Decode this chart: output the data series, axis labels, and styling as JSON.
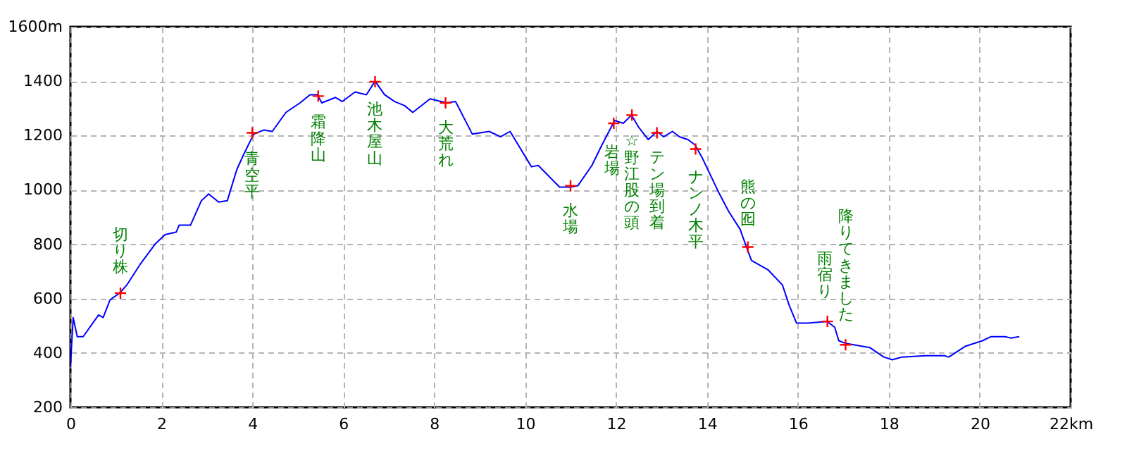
{
  "chart_data": {
    "type": "line",
    "xlim": [
      0,
      22
    ],
    "ylim": [
      200,
      1600
    ],
    "xticks": [
      0,
      2,
      4,
      6,
      8,
      10,
      12,
      14,
      16,
      18,
      20,
      {
        "value": 22,
        "label": "22km"
      }
    ],
    "yticks": [
      200,
      400,
      600,
      800,
      1000,
      1200,
      1400,
      {
        "value": 1600,
        "label": "1600m"
      }
    ],
    "grid": true,
    "series": [
      {
        "type": "line",
        "color": "#0000ff",
        "x": [
          0,
          0.06,
          0.15,
          0.28,
          0.62,
          0.72,
          0.87,
          1.08,
          1.24,
          1.55,
          1.86,
          2.08,
          2.33,
          2.39,
          2.64,
          2.88,
          3.04,
          3.26,
          3.45,
          3.66,
          3.81,
          4.03,
          4.25,
          4.44,
          4.74,
          5.05,
          5.27,
          5.43,
          5.53,
          5.83,
          5.98,
          6.26,
          6.51,
          6.7,
          6.91,
          7.13,
          7.35,
          7.53,
          7.91,
          8.28,
          8.47,
          8.84,
          9.21,
          9.46,
          9.67,
          10.14,
          10.29,
          10.76,
          11.0,
          11.16,
          11.47,
          11.69,
          11.97,
          12.16,
          12.34,
          12.5,
          12.71,
          12.9,
          13.05,
          13.24,
          13.4,
          13.58,
          13.74,
          13.89,
          14.26,
          14.48,
          14.73,
          14.88,
          14.98,
          15.35,
          15.66,
          15.81,
          15.97,
          16.22,
          16.59,
          16.65,
          16.81,
          16.9,
          17.05,
          17.58,
          17.89,
          18.08,
          18.29,
          18.82,
          19.22,
          19.32,
          19.69,
          20.06,
          20.25,
          20.56,
          20.68,
          20.87
        ],
        "values": [
          350,
          530,
          460,
          460,
          540,
          530,
          595,
          620,
          650,
          730,
          800,
          835,
          845,
          870,
          870,
          960,
          985,
          955,
          960,
          1075,
          1130,
          1205,
          1220,
          1215,
          1285,
          1320,
          1350,
          1350,
          1320,
          1340,
          1325,
          1360,
          1350,
          1400,
          1350,
          1325,
          1310,
          1285,
          1335,
          1320,
          1325,
          1205,
          1215,
          1195,
          1215,
          1085,
          1090,
          1010,
          1010,
          1015,
          1090,
          1165,
          1255,
          1245,
          1275,
          1230,
          1185,
          1215,
          1195,
          1215,
          1195,
          1185,
          1165,
          1120,
          990,
          920,
          855,
          785,
          740,
          705,
          650,
          575,
          510,
          510,
          515,
          515,
          495,
          445,
          435,
          420,
          385,
          375,
          385,
          390,
          390,
          385,
          425,
          445,
          460,
          460,
          455,
          460
        ]
      },
      {
        "type": "scatter",
        "color": "#ff0000",
        "marker": "cross",
        "x": [
          1.1,
          4.0,
          5.45,
          6.7,
          8.25,
          11.0,
          11.95,
          12.35,
          12.9,
          13.75,
          14.9,
          16.65,
          17.05
        ],
        "values": [
          620,
          1210,
          1345,
          1398,
          1320,
          1015,
          1245,
          1275,
          1210,
          1150,
          790,
          516,
          430
        ]
      }
    ],
    "annotations": [
      {
        "text": "切り株",
        "x": 1.1,
        "y": 620
      },
      {
        "text": "青空平",
        "x": 4.0,
        "y": 1210
      },
      {
        "text": "霜降山",
        "x": 5.45,
        "y": 1345
      },
      {
        "text": "池木屋山",
        "x": 6.7,
        "y": 1398
      },
      {
        "text": "大荒れ",
        "x": 8.25,
        "y": 1320
      },
      {
        "text": "水場",
        "x": 11.0,
        "y": 1015
      },
      {
        "text": "岩場",
        "x": 11.95,
        "y": 1245
      },
      {
        "text": "☆野江股の頭",
        "x": 12.35,
        "y": 1275
      },
      {
        "text": "テン場到着",
        "x": 12.9,
        "y": 1210
      },
      {
        "text": "ナンノ木平",
        "x": 13.75,
        "y": 1150
      },
      {
        "text": "熊の囮",
        "x": 14.9,
        "y": 790
      },
      {
        "text": "雨宿り",
        "x": 16.65,
        "y": 516
      },
      {
        "text": "降りてきました",
        "x": 17.05,
        "y": 430
      }
    ]
  }
}
